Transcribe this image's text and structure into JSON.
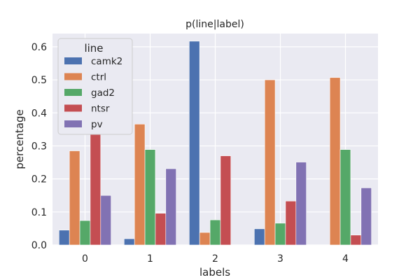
{
  "chart_data": {
    "type": "bar",
    "title": "p(line|label)",
    "xlabel": "labels",
    "ylabel": "percentage",
    "categories": [
      "0",
      "1",
      "2",
      "3",
      "4"
    ],
    "ylim": [
      0,
      0.64
    ],
    "yticks": [
      "0.0",
      "0.1",
      "0.2",
      "0.3",
      "0.4",
      "0.5",
      "0.6"
    ],
    "grid": true,
    "legend": {
      "title": "line",
      "placement": "top-left"
    },
    "series": [
      {
        "name": "camk2",
        "color": "#4c72b0",
        "values": [
          0.045,
          0.019,
          0.617,
          0.049,
          null
        ]
      },
      {
        "name": "ctrl",
        "color": "#dd8452",
        "values": [
          0.285,
          0.366,
          0.038,
          0.5,
          0.507
        ]
      },
      {
        "name": "gad2",
        "color": "#55a868",
        "values": [
          0.074,
          0.289,
          0.076,
          0.066,
          0.289
        ]
      },
      {
        "name": "ntsr",
        "color": "#c44e52",
        "values": [
          0.448,
          0.096,
          0.27,
          0.133,
          0.03
        ]
      },
      {
        "name": "pv",
        "color": "#8172b3",
        "values": [
          0.15,
          0.231,
          null,
          0.251,
          0.173
        ]
      }
    ]
  }
}
